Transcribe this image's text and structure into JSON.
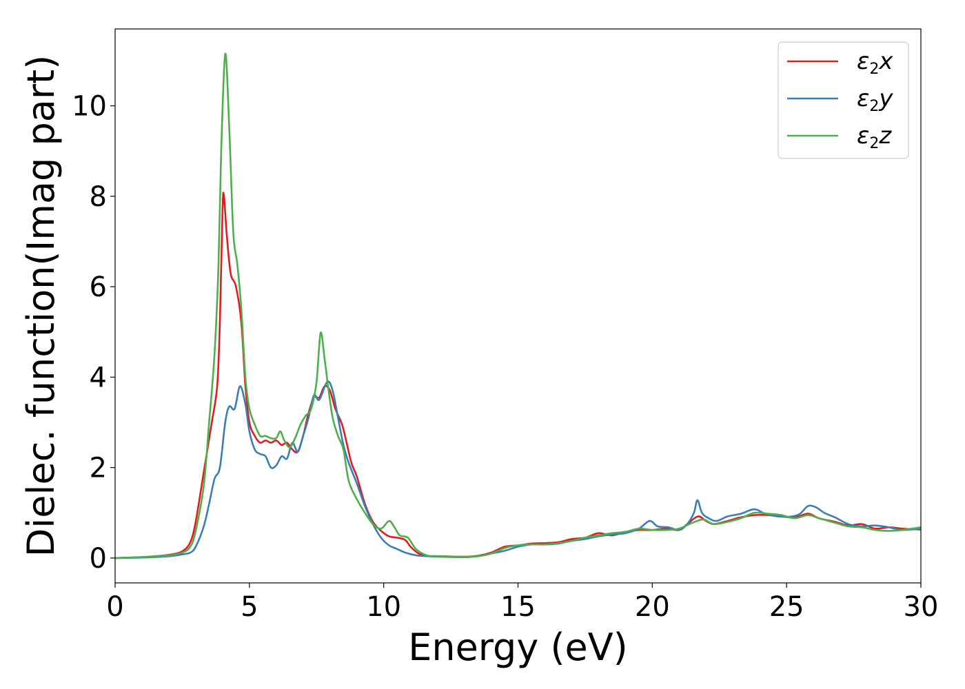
{
  "chart_data": {
    "type": "line",
    "title": "",
    "xlabel": "Energy (eV)",
    "ylabel": "Dielec. function(Imag part)",
    "xlim": [
      0,
      30
    ],
    "ylim": [
      -0.55,
      11.7
    ],
    "xticks": [
      0,
      5,
      10,
      15,
      20,
      25,
      30
    ],
    "yticks": [
      0,
      2,
      4,
      6,
      8,
      10
    ],
    "grid": false,
    "legend_position": "top-right",
    "series": [
      {
        "name": "ε2x",
        "legend_base": "ε",
        "legend_sub": "2",
        "legend_var": "x",
        "color": "#e41a1c",
        "points": [
          [
            0,
            0.0
          ],
          [
            1,
            0.02
          ],
          [
            2,
            0.07
          ],
          [
            2.5,
            0.15
          ],
          [
            2.8,
            0.35
          ],
          [
            3.0,
            0.8
          ],
          [
            3.3,
            1.9
          ],
          [
            3.6,
            3.0
          ],
          [
            3.8,
            3.8
          ],
          [
            3.9,
            5.2
          ],
          [
            4.0,
            7.7
          ],
          [
            4.05,
            8.02
          ],
          [
            4.15,
            7.2
          ],
          [
            4.3,
            6.3
          ],
          [
            4.5,
            6.0
          ],
          [
            4.7,
            5.2
          ],
          [
            4.85,
            3.8
          ],
          [
            5.0,
            3.0
          ],
          [
            5.2,
            2.7
          ],
          [
            5.4,
            2.55
          ],
          [
            5.6,
            2.6
          ],
          [
            5.8,
            2.55
          ],
          [
            6.0,
            2.6
          ],
          [
            6.2,
            2.5
          ],
          [
            6.4,
            2.55
          ],
          [
            6.6,
            2.4
          ],
          [
            6.8,
            2.35
          ],
          [
            7.0,
            2.7
          ],
          [
            7.2,
            3.2
          ],
          [
            7.4,
            3.55
          ],
          [
            7.6,
            3.55
          ],
          [
            7.8,
            3.8
          ],
          [
            8.0,
            3.7
          ],
          [
            8.2,
            3.3
          ],
          [
            8.45,
            2.95
          ],
          [
            8.6,
            2.6
          ],
          [
            8.8,
            2.1
          ],
          [
            9.0,
            1.8
          ],
          [
            9.3,
            1.2
          ],
          [
            9.6,
            0.8
          ],
          [
            9.9,
            0.6
          ],
          [
            10.2,
            0.48
          ],
          [
            10.5,
            0.45
          ],
          [
            10.8,
            0.4
          ],
          [
            11.0,
            0.25
          ],
          [
            11.3,
            0.1
          ],
          [
            11.6,
            0.05
          ],
          [
            12,
            0.04
          ],
          [
            13,
            0.03
          ],
          [
            13.5,
            0.05
          ],
          [
            14,
            0.12
          ],
          [
            14.5,
            0.25
          ],
          [
            15,
            0.28
          ],
          [
            15.5,
            0.32
          ],
          [
            16,
            0.33
          ],
          [
            16.5,
            0.35
          ],
          [
            17,
            0.42
          ],
          [
            17.5,
            0.45
          ],
          [
            18,
            0.55
          ],
          [
            18.5,
            0.5
          ],
          [
            19,
            0.58
          ],
          [
            19.5,
            0.62
          ],
          [
            20,
            0.62
          ],
          [
            20.5,
            0.65
          ],
          [
            21,
            0.62
          ],
          [
            21.3,
            0.75
          ],
          [
            21.7,
            0.92
          ],
          [
            22.0,
            0.82
          ],
          [
            22.3,
            0.75
          ],
          [
            22.8,
            0.82
          ],
          [
            23.3,
            0.9
          ],
          [
            23.8,
            0.95
          ],
          [
            24.3,
            0.95
          ],
          [
            24.8,
            0.92
          ],
          [
            25.3,
            0.9
          ],
          [
            25.8,
            0.98
          ],
          [
            26.2,
            0.88
          ],
          [
            26.8,
            0.8
          ],
          [
            27.3,
            0.72
          ],
          [
            27.8,
            0.75
          ],
          [
            28.3,
            0.65
          ],
          [
            28.8,
            0.68
          ],
          [
            29.3,
            0.65
          ],
          [
            30,
            0.63
          ]
        ]
      },
      {
        "name": "ε2y",
        "legend_base": "ε",
        "legend_sub": "2",
        "legend_var": "y",
        "color": "#377eb8",
        "points": [
          [
            0,
            0.0
          ],
          [
            1,
            0.01
          ],
          [
            2,
            0.04
          ],
          [
            2.5,
            0.08
          ],
          [
            2.8,
            0.12
          ],
          [
            3.0,
            0.25
          ],
          [
            3.3,
            0.7
          ],
          [
            3.5,
            1.2
          ],
          [
            3.7,
            1.75
          ],
          [
            3.9,
            2.0
          ],
          [
            4.1,
            3.0
          ],
          [
            4.25,
            3.35
          ],
          [
            4.45,
            3.3
          ],
          [
            4.65,
            3.8
          ],
          [
            4.85,
            3.4
          ],
          [
            5.0,
            2.8
          ],
          [
            5.2,
            2.4
          ],
          [
            5.4,
            2.3
          ],
          [
            5.6,
            2.25
          ],
          [
            5.8,
            2.0
          ],
          [
            6.0,
            2.05
          ],
          [
            6.2,
            2.25
          ],
          [
            6.4,
            2.2
          ],
          [
            6.6,
            2.55
          ],
          [
            6.8,
            2.35
          ],
          [
            7.0,
            2.7
          ],
          [
            7.2,
            3.1
          ],
          [
            7.4,
            3.6
          ],
          [
            7.6,
            3.5
          ],
          [
            7.9,
            3.9
          ],
          [
            8.1,
            3.7
          ],
          [
            8.3,
            3.1
          ],
          [
            8.5,
            2.5
          ],
          [
            8.7,
            2.1
          ],
          [
            9.0,
            1.65
          ],
          [
            9.3,
            1.15
          ],
          [
            9.6,
            0.75
          ],
          [
            9.9,
            0.45
          ],
          [
            10.2,
            0.28
          ],
          [
            10.5,
            0.2
          ],
          [
            10.8,
            0.12
          ],
          [
            11.2,
            0.06
          ],
          [
            11.6,
            0.04
          ],
          [
            12,
            0.03
          ],
          [
            13,
            0.02
          ],
          [
            13.5,
            0.04
          ],
          [
            14,
            0.1
          ],
          [
            14.5,
            0.16
          ],
          [
            15,
            0.25
          ],
          [
            15.5,
            0.3
          ],
          [
            16,
            0.3
          ],
          [
            16.5,
            0.32
          ],
          [
            17,
            0.38
          ],
          [
            17.5,
            0.42
          ],
          [
            18,
            0.48
          ],
          [
            18.5,
            0.52
          ],
          [
            19,
            0.55
          ],
          [
            19.5,
            0.65
          ],
          [
            19.9,
            0.82
          ],
          [
            20.2,
            0.7
          ],
          [
            20.6,
            0.68
          ],
          [
            21.0,
            0.62
          ],
          [
            21.3,
            0.75
          ],
          [
            21.55,
            1.0
          ],
          [
            21.68,
            1.28
          ],
          [
            21.85,
            1.0
          ],
          [
            22.1,
            0.88
          ],
          [
            22.4,
            0.82
          ],
          [
            22.8,
            0.92
          ],
          [
            23.3,
            0.98
          ],
          [
            23.8,
            1.08
          ],
          [
            24.2,
            0.98
          ],
          [
            24.7,
            0.92
          ],
          [
            25.2,
            0.92
          ],
          [
            25.5,
            0.98
          ],
          [
            25.8,
            1.15
          ],
          [
            26.1,
            1.12
          ],
          [
            26.4,
            1.0
          ],
          [
            26.8,
            0.9
          ],
          [
            27.3,
            0.75
          ],
          [
            27.8,
            0.7
          ],
          [
            28.3,
            0.72
          ],
          [
            28.8,
            0.68
          ],
          [
            29.3,
            0.62
          ],
          [
            30,
            0.65
          ]
        ]
      },
      {
        "name": "ε2z",
        "legend_base": "ε",
        "legend_sub": "2",
        "legend_var": "z",
        "color": "#4daf4a",
        "points": [
          [
            0,
            0.0
          ],
          [
            1,
            0.02
          ],
          [
            2,
            0.06
          ],
          [
            2.5,
            0.12
          ],
          [
            2.8,
            0.25
          ],
          [
            3.0,
            0.6
          ],
          [
            3.3,
            1.6
          ],
          [
            3.5,
            3.0
          ],
          [
            3.7,
            4.5
          ],
          [
            3.85,
            6.5
          ],
          [
            3.95,
            9.0
          ],
          [
            4.1,
            11.15
          ],
          [
            4.25,
            9.5
          ],
          [
            4.4,
            7.2
          ],
          [
            4.55,
            6.5
          ],
          [
            4.7,
            5.5
          ],
          [
            4.85,
            4.0
          ],
          [
            5.0,
            3.3
          ],
          [
            5.2,
            2.95
          ],
          [
            5.4,
            2.7
          ],
          [
            5.6,
            2.7
          ],
          [
            5.8,
            2.65
          ],
          [
            6.0,
            2.65
          ],
          [
            6.15,
            2.8
          ],
          [
            6.3,
            2.6
          ],
          [
            6.5,
            2.45
          ],
          [
            6.7,
            2.65
          ],
          [
            6.9,
            2.95
          ],
          [
            7.1,
            3.15
          ],
          [
            7.3,
            3.3
          ],
          [
            7.5,
            3.9
          ],
          [
            7.65,
            4.98
          ],
          [
            7.8,
            4.4
          ],
          [
            7.95,
            3.7
          ],
          [
            8.1,
            3.1
          ],
          [
            8.3,
            2.7
          ],
          [
            8.5,
            2.4
          ],
          [
            8.7,
            1.7
          ],
          [
            9.0,
            1.3
          ],
          [
            9.3,
            1.0
          ],
          [
            9.6,
            0.75
          ],
          [
            9.9,
            0.65
          ],
          [
            10.2,
            0.82
          ],
          [
            10.4,
            0.68
          ],
          [
            10.6,
            0.5
          ],
          [
            10.9,
            0.45
          ],
          [
            11.2,
            0.2
          ],
          [
            11.6,
            0.06
          ],
          [
            12,
            0.04
          ],
          [
            13,
            0.03
          ],
          [
            13.5,
            0.04
          ],
          [
            14,
            0.1
          ],
          [
            14.5,
            0.22
          ],
          [
            15,
            0.28
          ],
          [
            15.5,
            0.3
          ],
          [
            16,
            0.3
          ],
          [
            16.5,
            0.33
          ],
          [
            17,
            0.38
          ],
          [
            17.5,
            0.45
          ],
          [
            18,
            0.5
          ],
          [
            18.5,
            0.55
          ],
          [
            19,
            0.58
          ],
          [
            19.5,
            0.65
          ],
          [
            20,
            0.62
          ],
          [
            20.5,
            0.62
          ],
          [
            21,
            0.65
          ],
          [
            21.5,
            0.78
          ],
          [
            21.9,
            0.85
          ],
          [
            22.3,
            0.75
          ],
          [
            22.8,
            0.8
          ],
          [
            23.3,
            0.88
          ],
          [
            23.8,
            1.0
          ],
          [
            24.3,
            0.98
          ],
          [
            24.8,
            0.95
          ],
          [
            25.3,
            0.88
          ],
          [
            25.8,
            0.95
          ],
          [
            26.2,
            0.88
          ],
          [
            26.8,
            0.78
          ],
          [
            27.3,
            0.7
          ],
          [
            27.8,
            0.68
          ],
          [
            28.3,
            0.62
          ],
          [
            28.8,
            0.6
          ],
          [
            29.3,
            0.62
          ],
          [
            30,
            0.68
          ]
        ]
      }
    ]
  }
}
